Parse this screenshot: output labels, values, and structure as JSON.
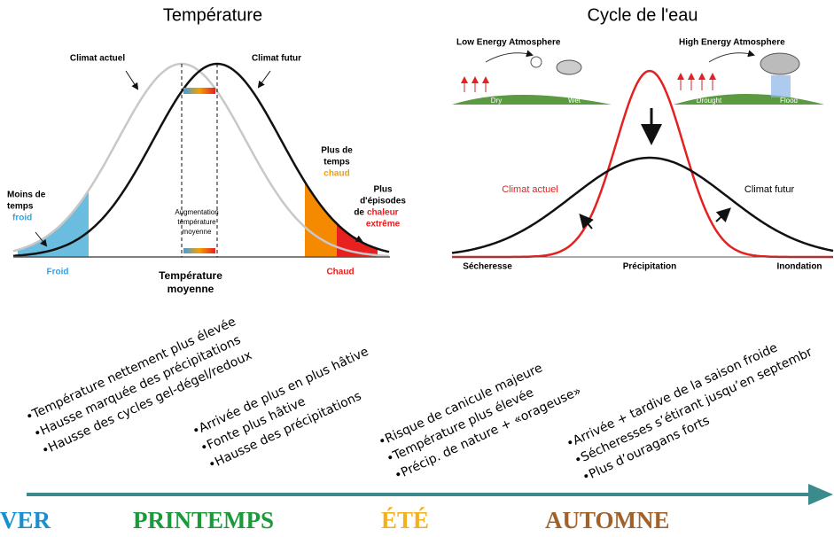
{
  "temperature": {
    "title": "Température",
    "climat_actuel": "Climat actuel",
    "climat_futur": "Climat futur",
    "moins_de_temps": [
      "Moins de",
      "temps"
    ],
    "froid_label": "froid",
    "plus_de_temps": [
      "Plus de",
      "temps"
    ],
    "chaud_label": "chaud",
    "plus_episodes": [
      "Plus",
      "d'épisodes",
      "de"
    ],
    "chaleur": "chaleur",
    "extreme": "extrême",
    "augmentation": [
      "Augmentation",
      "température",
      "moyenne"
    ],
    "axis_froid": "Froid",
    "axis_chaud": "Chaud",
    "axis_title": [
      "Température",
      "moyenne"
    ]
  },
  "eau": {
    "title": "Cycle de l'eau",
    "low_energy": "Low Energy Atmosphere",
    "high_energy": "High Energy Atmosphere",
    "dry": "Dry",
    "wet": "Wet",
    "drought": "Drought",
    "flood": "Flood",
    "climat_actuel": "Climat actuel",
    "climat_futur": "Climat futur",
    "secheresse": "Sécheresse",
    "precipitation": "Précipitation",
    "inondation": "Inondation"
  },
  "impacts": [
    [
      "•Température nettement plus élevée",
      "•Hausse marquée des précipitations",
      "•Hausse des cycles gel-dégel/redoux"
    ],
    [
      "•Arrivée de plus en plus hâtive",
      "•Fonte plus hâtive",
      "•Hausse des précipitations"
    ],
    [
      "•Risque de canicule majeure",
      "•Température plus élevée",
      "•Précip. de nature + «orageuse»"
    ],
    [
      "•Arrivée + tardive de la saison froide",
      "•Sécheresses s’étirant jusqu’en septembr",
      "•Plus d’ouragans forts"
    ]
  ],
  "seasons": [
    "VER",
    "PRINTEMPS",
    "ÉTÉ",
    "AUTOMNE"
  ]
}
